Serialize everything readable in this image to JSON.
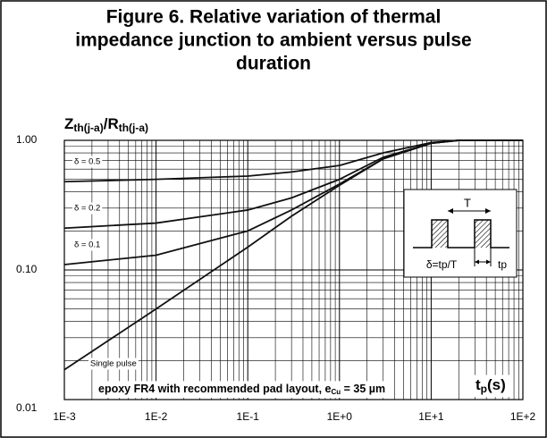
{
  "chart_data": {
    "type": "line",
    "title": [
      "Figure 6. Relative variation of thermal",
      "impedance junction to ambient versus pulse",
      "duration"
    ],
    "ylabel": [
      "Z",
      "th(j-a)",
      "/R",
      "th(j-a)"
    ],
    "xlabel": [
      "t",
      "p",
      "(s)"
    ],
    "note": {
      "text": "epoxy FR4 with recommended pad layout, e",
      "sub": "Cu",
      "rest": " = 35 µm"
    },
    "log_x": true,
    "log_y": true,
    "grid": true,
    "x": [
      0.001,
      0.01,
      0.1,
      0.3,
      1,
      3,
      10,
      20,
      100
    ],
    "series": [
      {
        "name": "δ = 0.5",
        "color": "#111111",
        "values": [
          0.48,
          0.5,
          0.53,
          0.57,
          0.64,
          0.8,
          0.96,
          1.0,
          1.0
        ]
      },
      {
        "name": "δ = 0.2",
        "color": "#111111",
        "values": [
          0.21,
          0.23,
          0.29,
          0.36,
          0.5,
          0.74,
          0.95,
          1.0,
          1.0
        ]
      },
      {
        "name": "δ = 0.1",
        "color": "#111111",
        "values": [
          0.11,
          0.13,
          0.2,
          0.29,
          0.46,
          0.72,
          0.95,
          1.0,
          1.0
        ]
      },
      {
        "name": "Single pulse",
        "color": "#111111",
        "values": [
          0.017,
          0.05,
          0.15,
          0.26,
          0.45,
          0.72,
          0.95,
          1.0,
          1.0
        ]
      }
    ],
    "xlim": [
      0.001,
      100
    ],
    "ylim": [
      0.01,
      1
    ],
    "xticks": [
      {
        "value": 0.001,
        "label": "1E-3"
      },
      {
        "value": 0.01,
        "label": "1E-2"
      },
      {
        "value": 0.1,
        "label": "1E-1"
      },
      {
        "value": 1,
        "label": "1E+0"
      },
      {
        "value": 10,
        "label": "1E+1"
      },
      {
        "value": 100,
        "label": "1E+2"
      }
    ],
    "yticks": [
      {
        "value": 0.01,
        "label": "0.01"
      },
      {
        "value": 0.1,
        "label": "0.10"
      },
      {
        "value": 1,
        "label": "1.00"
      }
    ],
    "inset": {
      "period": "T",
      "duty": "δ=tp/T",
      "pulse": "tp"
    }
  }
}
